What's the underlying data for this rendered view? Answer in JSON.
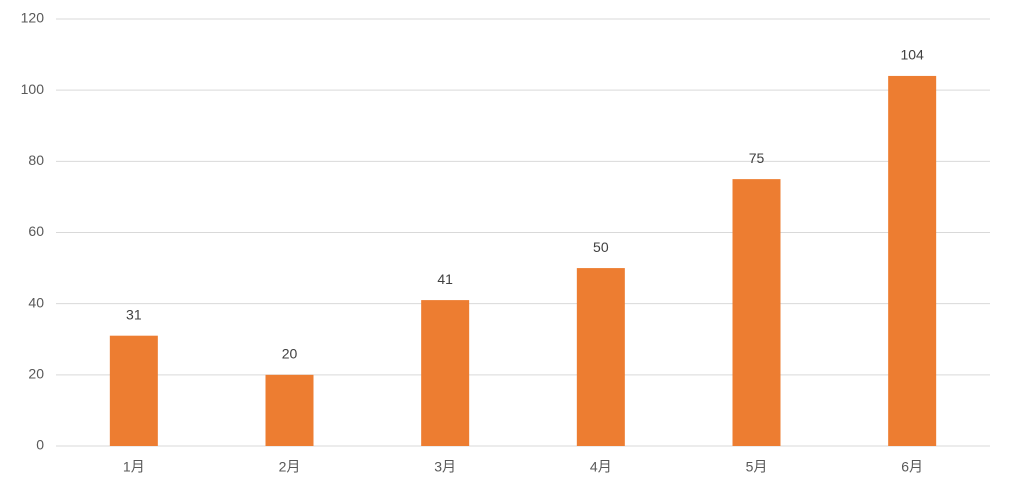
{
  "chart_data": {
    "type": "bar",
    "categories": [
      "1月",
      "2月",
      "3月",
      "4月",
      "5月",
      "6月"
    ],
    "values": [
      31,
      20,
      41,
      50,
      75,
      104
    ],
    "color": "#ed7d31",
    "ylim": [
      0,
      120
    ],
    "yticks": [
      0,
      20,
      40,
      60,
      80,
      100,
      120
    ],
    "grid": true,
    "data_labels": true
  }
}
